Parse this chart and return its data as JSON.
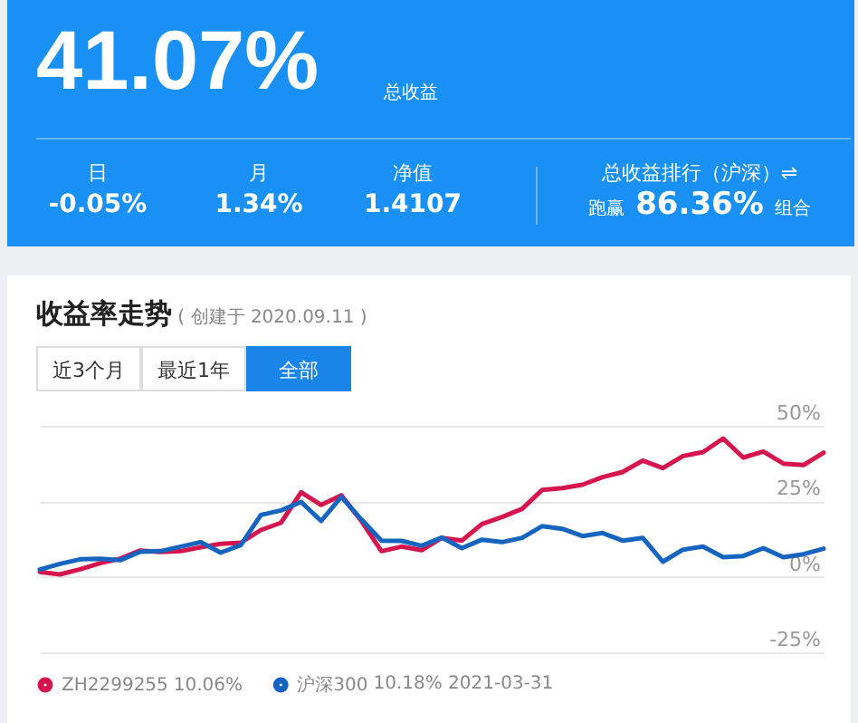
{
  "chart_data": [
    {
      "type": "other",
      "annotations": [
        "41.07%",
        "总收益",
        "日",
        "-0.05%",
        "月",
        "1.34%",
        "净值",
        "1.4107",
        "总收益排行（沪深）⇌",
        "跑赢",
        "86.36%",
        "组合"
      ]
    },
    {
      "type": "line",
      "title": "收益率走势",
      "subtitle": "( 创建于 2020.09.11 )",
      "annotations": [
        "近3个月",
        "最近1年",
        "全部",
        "10.06%",
        "10.18%",
        "2021-03-31"
      ],
      "categories": [
        null,
        null,
        null,
        null,
        null,
        null,
        null,
        null,
        null,
        null,
        null,
        null,
        null,
        null,
        null,
        null,
        null,
        null,
        null,
        null,
        null,
        null,
        null,
        null,
        null,
        null,
        null,
        null,
        null,
        null,
        null,
        null,
        null,
        null,
        null,
        null,
        null,
        null,
        null,
        null
      ],
      "series": [
        {
          "name": "ZH2299255",
          "color": "#d6154f",
          "values": [
            1.6,
            0.8,
            2.5,
            4.5,
            6,
            8.7,
            8.2,
            8.5,
            9.8,
            10.9,
            11.3,
            15.5,
            17.9,
            28,
            23.8,
            27,
            18.5,
            8.5,
            10,
            8.8,
            12.9,
            12,
            17.5,
            19.8,
            22.5,
            28.8,
            29.4,
            30.5,
            33,
            34.7,
            38.5,
            36,
            40,
            41.3,
            45.8,
            39.5,
            41.5,
            37.5,
            37,
            41.1
          ]
        },
        {
          "name": "沪深300",
          "color": "#1565c0",
          "values": [
            2.4,
            4.3,
            5.8,
            6,
            5.5,
            8.3,
            8.5,
            10,
            11.5,
            8,
            10.5,
            20.5,
            22,
            24.8,
            18.5,
            26.5,
            19,
            12,
            11.9,
            10.3,
            13,
            9.5,
            12.3,
            11.5,
            12.9,
            16.8,
            15.9,
            13.5,
            14.5,
            12,
            12.9,
            5,
            9,
            10,
            6.5,
            6.9,
            9.5,
            6.5,
            7.5,
            9.3
          ]
        }
      ],
      "ylim": [
        -25,
        50
      ],
      "yticks": [
        {
          "value": 50,
          "label": "50%"
        },
        {
          "value": 25,
          "label": "25%"
        },
        {
          "value": 0,
          "label": "0%"
        },
        {
          "value": -25,
          "label": "-25%"
        }
      ],
      "grid": "y",
      "tick_labels": "y",
      "legend": "bottom"
    }
  ]
}
